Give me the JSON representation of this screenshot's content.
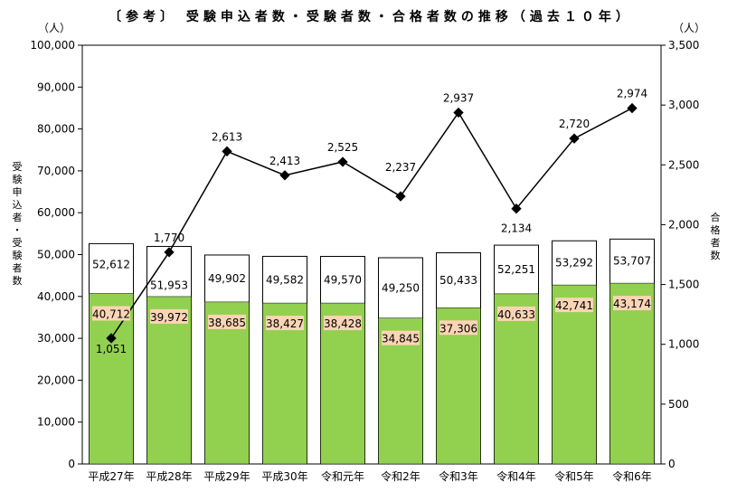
{
  "chart_data": {
    "type": "bar+line",
    "title": "〔参考〕 受験申込者数・受験者数・合格者数の推移（過去１０年）",
    "left_axis": {
      "label": "受験申込者・受験者数",
      "unit": "（人）",
      "range": [
        0,
        100000
      ],
      "step": 10000
    },
    "right_axis": {
      "label": "合格者数",
      "unit": "（人）",
      "range": [
        0,
        3500
      ],
      "step": 500
    },
    "categories": [
      "平成27年",
      "平成28年",
      "平成29年",
      "平成30年",
      "令和元年",
      "令和2年",
      "令和3年",
      "令和4年",
      "令和5年",
      "令和6年"
    ],
    "series": [
      {
        "axis": "left",
        "type": "bar",
        "color": "#92D050",
        "values": [
          40712,
          39972,
          38685,
          38427,
          38428,
          34845,
          37306,
          40633,
          42741,
          43174
        ],
        "labels": [
          "40,712",
          "39,972",
          "38,685",
          "38,427",
          "38,428",
          "34,845",
          "37,306",
          "40,633",
          "42,741",
          "43,174"
        ]
      },
      {
        "axis": "left",
        "type": "bar-outline",
        "color": "#ffffff",
        "values": [
          52612,
          51953,
          49902,
          49582,
          49570,
          49250,
          50433,
          52251,
          53292,
          53707
        ],
        "labels": [
          "52,612",
          "51,953",
          "49,902",
          "49,582",
          "49,570",
          "49,250",
          "50,433",
          "52,251",
          "53,292",
          "53,707"
        ]
      },
      {
        "axis": "right",
        "type": "line",
        "color": "#000000",
        "values": [
          1051,
          1770,
          2613,
          2413,
          2525,
          2237,
          2937,
          2134,
          2720,
          2974
        ],
        "labels": [
          "1,051",
          "1,770",
          "2,613",
          "2,413",
          "2,525",
          "2,237",
          "2,937",
          "2,134",
          "2,720",
          "2,974"
        ]
      }
    ],
    "left_ticks": [
      "0",
      "10,000",
      "20,000",
      "30,000",
      "40,000",
      "50,000",
      "60,000",
      "70,000",
      "80,000",
      "90,000",
      "100,000"
    ],
    "right_ticks": [
      "0",
      "500",
      "1,000",
      "1,500",
      "2,000",
      "2,500",
      "3,000",
      "3,500"
    ],
    "colors": {
      "bar_fill": "#92D050",
      "label_bg": "#FBD4B4",
      "line": "#000000"
    },
    "grid": false
  }
}
